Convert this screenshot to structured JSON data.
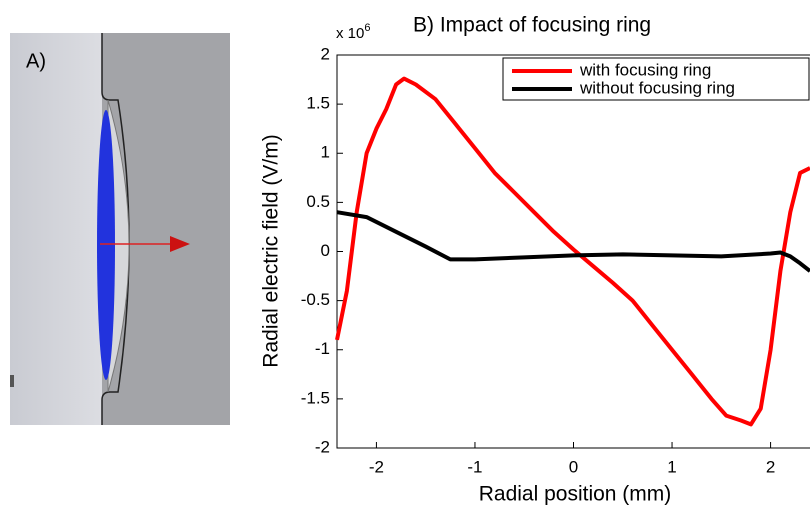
{
  "panel_a": {
    "label": "A)"
  },
  "chart_data": {
    "type": "line",
    "title": "B) Impact of focusing ring",
    "y_multiplier": {
      "base": "x 10",
      "exponent": "6"
    },
    "x_label": "Radial position (mm)",
    "y_label": "Radial electric field (V/m)",
    "xlim": [
      -2.4,
      2.4
    ],
    "ylim": [
      -2,
      2
    ],
    "xticks": [
      -2,
      -1,
      0,
      1,
      2
    ],
    "yticks": [
      -2,
      -1.5,
      -1,
      -0.5,
      0,
      0.5,
      1,
      1.5,
      2
    ],
    "legend": "upper right",
    "series": [
      {
        "name": "with focusing ring",
        "color": "#ff0000",
        "x": [
          -2.4,
          -2.3,
          -2.2,
          -2.1,
          -2.0,
          -1.9,
          -1.8,
          -1.72,
          -1.6,
          -1.4,
          -1.2,
          -1.0,
          -0.8,
          -0.6,
          -0.4,
          -0.2,
          0,
          0.2,
          0.4,
          0.6,
          0.8,
          1.0,
          1.2,
          1.4,
          1.55,
          1.7,
          1.8,
          1.9,
          2.0,
          2.1,
          2.2,
          2.3,
          2.4
        ],
        "values": [
          -0.9,
          -0.4,
          0.4,
          1.0,
          1.25,
          1.45,
          1.7,
          1.76,
          1.7,
          1.55,
          1.3,
          1.05,
          0.8,
          0.6,
          0.4,
          0.2,
          0.02,
          -0.15,
          -0.32,
          -0.5,
          -0.75,
          -1.0,
          -1.25,
          -1.5,
          -1.67,
          -1.72,
          -1.76,
          -1.6,
          -1.0,
          -0.2,
          0.4,
          0.8,
          0.85
        ]
      },
      {
        "name": "without focusing ring",
        "color": "#000000",
        "x": [
          -2.4,
          -2.1,
          -1.8,
          -1.5,
          -1.25,
          -1.0,
          -0.5,
          0,
          0.5,
          1.0,
          1.5,
          2.0,
          2.1,
          2.2,
          2.3,
          2.4
        ],
        "values": [
          0.4,
          0.35,
          0.2,
          0.05,
          -0.08,
          -0.08,
          -0.06,
          -0.04,
          -0.03,
          -0.04,
          -0.05,
          -0.02,
          -0.01,
          -0.05,
          -0.12,
          -0.2
        ]
      }
    ]
  }
}
